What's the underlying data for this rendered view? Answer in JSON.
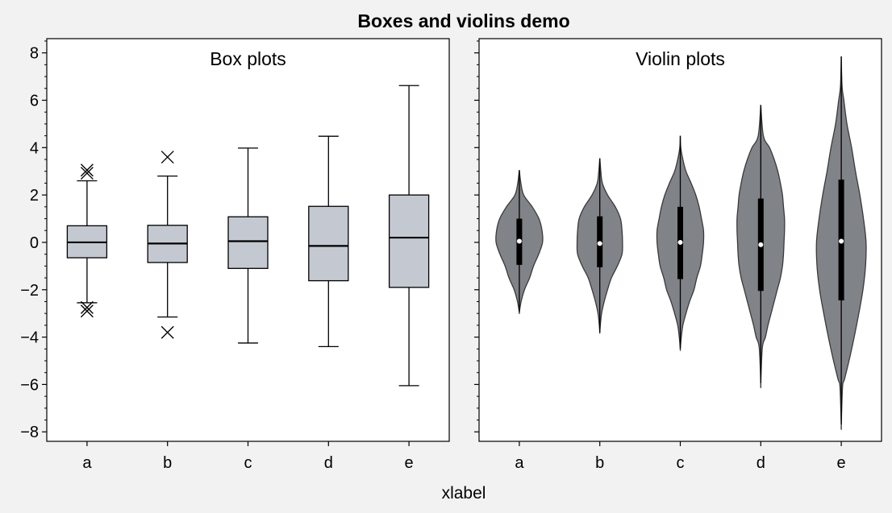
{
  "figure": {
    "suptitle": "Boxes and violins demo",
    "xlabel": "xlabel",
    "colors": {
      "background": "#f2f2f2",
      "axes_face": "#ffffff",
      "box_fill": "#c4c8d1",
      "violin_fill": "#808387",
      "violin_edge": "#3a3a3a",
      "median_dot": "#ffffff",
      "ink": "#000000"
    }
  },
  "chart_data": [
    {
      "type": "box",
      "title": "Box plots",
      "categories": [
        "a",
        "b",
        "c",
        "d",
        "e"
      ],
      "ylim": [
        -8.4,
        8.6
      ],
      "yticks": [
        -8,
        -6,
        -4,
        -2,
        0,
        2,
        4,
        6,
        8
      ],
      "boxes": [
        {
          "category": "a",
          "whisker_low": -2.55,
          "q1": -0.65,
          "median": 0.0,
          "q3": 0.7,
          "whisker_high": 2.6,
          "fliers": [
            3.05,
            2.92,
            -2.75,
            -2.9
          ]
        },
        {
          "category": "b",
          "whisker_low": -3.15,
          "q1": -0.85,
          "median": -0.05,
          "q3": 0.72,
          "whisker_high": 2.8,
          "fliers": [
            3.6,
            -3.8
          ]
        },
        {
          "category": "c",
          "whisker_low": -4.25,
          "q1": -1.1,
          "median": 0.05,
          "q3": 1.08,
          "whisker_high": 3.98,
          "fliers": []
        },
        {
          "category": "d",
          "whisker_low": -4.4,
          "q1": -1.62,
          "median": -0.15,
          "q3": 1.52,
          "whisker_high": 4.48,
          "fliers": []
        },
        {
          "category": "e",
          "whisker_low": -6.05,
          "q1": -1.9,
          "median": 0.2,
          "q3": 2.0,
          "whisker_high": 6.62,
          "fliers": []
        }
      ]
    },
    {
      "type": "violin",
      "title": "Violin plots",
      "categories": [
        "a",
        "b",
        "c",
        "d",
        "e"
      ],
      "ylim": [
        -8.4,
        8.6
      ],
      "yticks": [
        -8,
        -6,
        -4,
        -2,
        0,
        2,
        4,
        6,
        8
      ],
      "violins": [
        {
          "category": "a",
          "min": -2.95,
          "max": 3.05,
          "q1": -0.95,
          "median": 0.05,
          "q3": 1.0,
          "profile": [
            [
              3.05,
              0.0
            ],
            [
              2.5,
              0.06
            ],
            [
              2.0,
              0.17
            ],
            [
              1.5,
              0.5
            ],
            [
              1.0,
              0.76
            ],
            [
              0.5,
              0.88
            ],
            [
              0.0,
              0.9
            ],
            [
              -0.5,
              0.75
            ],
            [
              -1.0,
              0.55
            ],
            [
              -1.5,
              0.4
            ],
            [
              -2.0,
              0.2
            ],
            [
              -2.5,
              0.07
            ],
            [
              -2.95,
              0.0
            ]
          ]
        },
        {
          "category": "b",
          "min": -3.8,
          "max": 3.55,
          "q1": -1.05,
          "median": -0.05,
          "q3": 1.1,
          "profile": [
            [
              3.55,
              0.0
            ],
            [
              3.0,
              0.04
            ],
            [
              2.5,
              0.1
            ],
            [
              2.0,
              0.3
            ],
            [
              1.5,
              0.6
            ],
            [
              1.0,
              0.8
            ],
            [
              0.5,
              0.86
            ],
            [
              0.0,
              0.88
            ],
            [
              -0.5,
              0.86
            ],
            [
              -1.0,
              0.68
            ],
            [
              -1.5,
              0.45
            ],
            [
              -2.0,
              0.3
            ],
            [
              -2.5,
              0.17
            ],
            [
              -3.0,
              0.07
            ],
            [
              -3.5,
              0.02
            ],
            [
              -3.8,
              0.0
            ]
          ]
        },
        {
          "category": "c",
          "min": -4.5,
          "max": 4.5,
          "q1": -1.55,
          "median": 0.0,
          "q3": 1.5,
          "profile": [
            [
              4.5,
              0.0
            ],
            [
              4.0,
              0.02
            ],
            [
              3.5,
              0.1
            ],
            [
              3.0,
              0.22
            ],
            [
              2.5,
              0.42
            ],
            [
              2.0,
              0.6
            ],
            [
              1.5,
              0.73
            ],
            [
              1.0,
              0.82
            ],
            [
              0.5,
              0.9
            ],
            [
              0.0,
              0.9
            ],
            [
              -0.5,
              0.85
            ],
            [
              -1.0,
              0.78
            ],
            [
              -1.5,
              0.64
            ],
            [
              -2.0,
              0.53
            ],
            [
              -2.5,
              0.36
            ],
            [
              -3.0,
              0.22
            ],
            [
              -3.5,
              0.1
            ],
            [
              -4.0,
              0.04
            ],
            [
              -4.5,
              0.0
            ]
          ]
        },
        {
          "category": "d",
          "min": -5.95,
          "max": 5.8,
          "q1": -2.05,
          "median": -0.1,
          "q3": 1.85,
          "profile": [
            [
              5.8,
              0.0
            ],
            [
              4.5,
              0.1
            ],
            [
              4.0,
              0.34
            ],
            [
              3.5,
              0.52
            ],
            [
              3.0,
              0.66
            ],
            [
              2.5,
              0.76
            ],
            [
              2.0,
              0.84
            ],
            [
              1.5,
              0.88
            ],
            [
              1.0,
              0.92
            ],
            [
              0.5,
              0.92
            ],
            [
              0.0,
              0.9
            ],
            [
              -0.5,
              0.88
            ],
            [
              -1.0,
              0.84
            ],
            [
              -1.5,
              0.76
            ],
            [
              -2.0,
              0.64
            ],
            [
              -2.5,
              0.52
            ],
            [
              -3.0,
              0.4
            ],
            [
              -3.5,
              0.28
            ],
            [
              -4.0,
              0.18
            ],
            [
              -4.45,
              0.06
            ],
            [
              -5.95,
              0.0
            ]
          ]
        },
        {
          "category": "e",
          "min": -7.7,
          "max": 7.85,
          "q1": -2.45,
          "median": 0.05,
          "q3": 2.65,
          "profile": [
            [
              7.85,
              0.0
            ],
            [
              6.6,
              0.03
            ],
            [
              6.0,
              0.1
            ],
            [
              5.0,
              0.22
            ],
            [
              4.0,
              0.4
            ],
            [
              3.0,
              0.55
            ],
            [
              2.0,
              0.72
            ],
            [
              1.0,
              0.86
            ],
            [
              0.0,
              0.96
            ],
            [
              -1.0,
              0.94
            ],
            [
              -2.0,
              0.84
            ],
            [
              -3.0,
              0.68
            ],
            [
              -4.0,
              0.5
            ],
            [
              -5.0,
              0.3
            ],
            [
              -5.8,
              0.12
            ],
            [
              -6.1,
              0.05
            ],
            [
              -7.7,
              0.0
            ]
          ]
        }
      ]
    }
  ]
}
